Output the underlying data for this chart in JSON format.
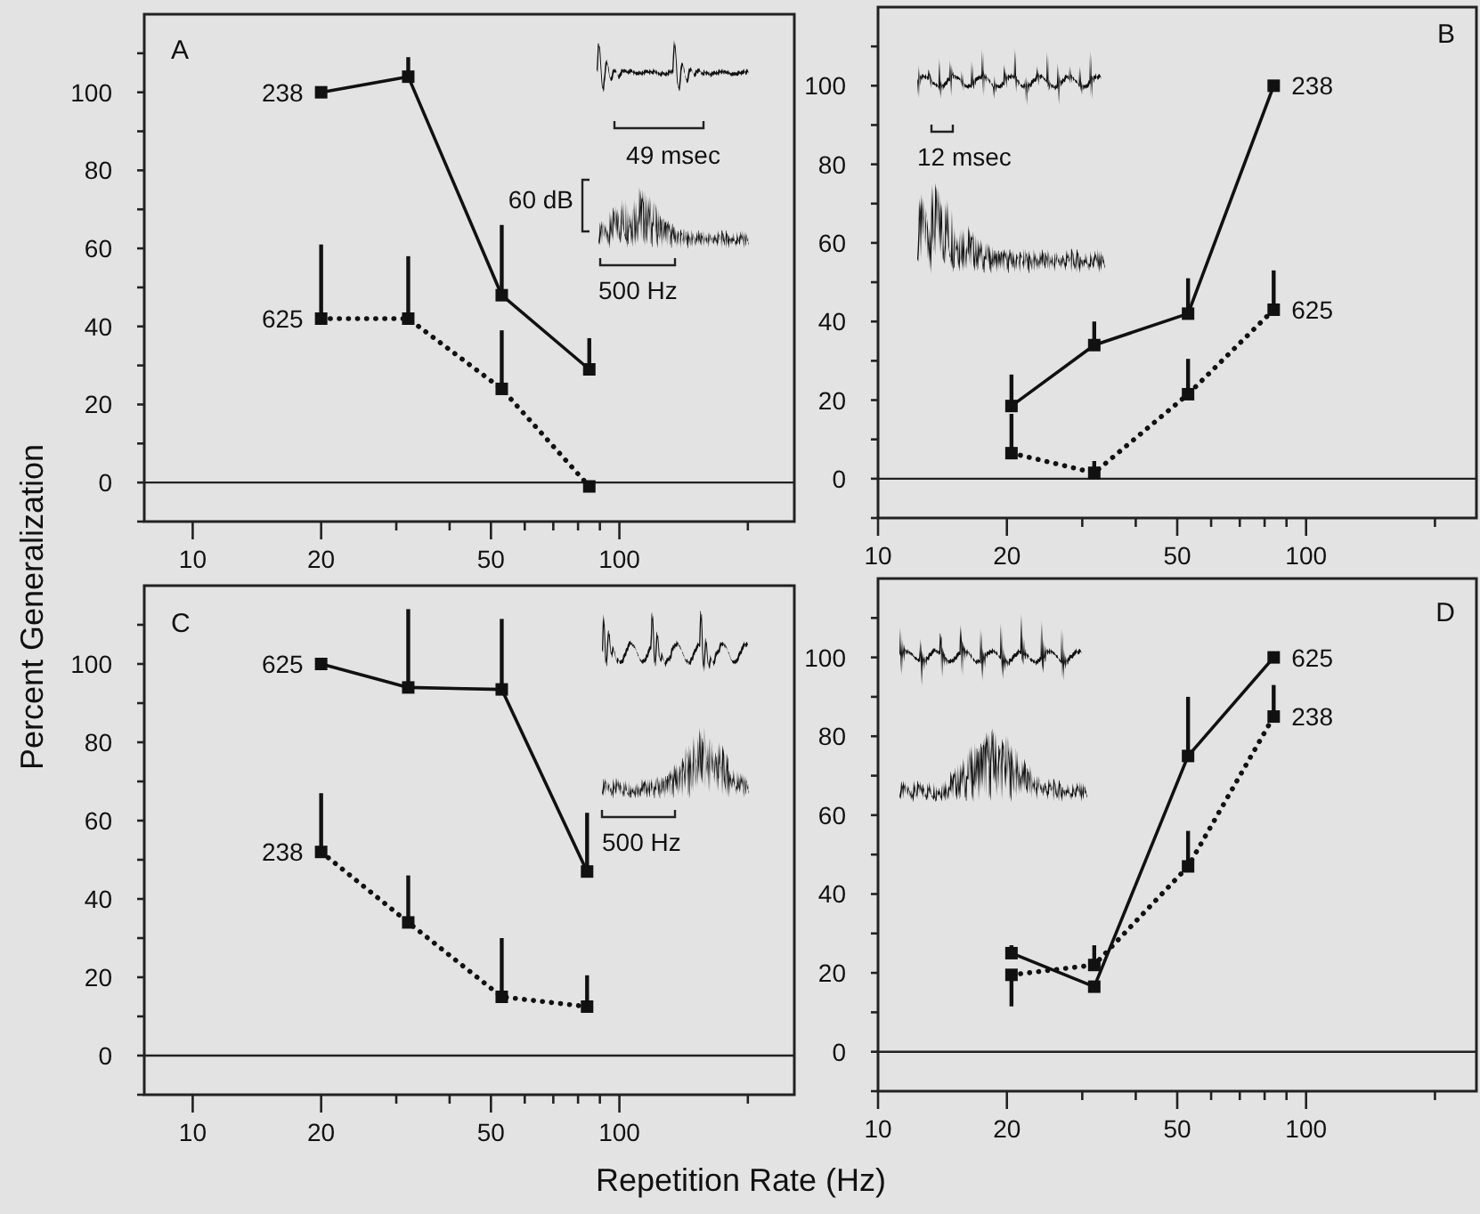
{
  "chart_data": [
    {
      "type": "line",
      "title": "A",
      "log": "x",
      "grid": false,
      "marker": "square",
      "xlim": [
        7.7,
        257
      ],
      "ylim": [
        -10,
        120
      ],
      "xticks": [
        10,
        20,
        {
          "value": 30,
          "label": null
        },
        {
          "value": 40,
          "label": null
        },
        50,
        {
          "value": 60,
          "label": null
        },
        {
          "value": 70,
          "label": null
        },
        {
          "value": 80,
          "label": null
        },
        {
          "value": 90,
          "label": null
        },
        100,
        {
          "value": 200,
          "label": null
        }
      ],
      "yticks": [
        {
          "value": -10,
          "label": null
        },
        0,
        {
          "value": 10,
          "label": null
        },
        20,
        {
          "value": 30,
          "label": null
        },
        40,
        {
          "value": 50,
          "label": null
        },
        60,
        {
          "value": 70,
          "label": null
        },
        80,
        {
          "value": 90,
          "label": null
        },
        100,
        {
          "value": 110,
          "label": null
        }
      ],
      "x": [
        20,
        32,
        53,
        85
      ],
      "series": [
        {
          "name": "238",
          "color": "#111111",
          "line_style": "solid",
          "values": [
            100,
            104,
            48,
            29
          ],
          "errors": [
            null,
            [
              104,
              109
            ],
            [
              48,
              66
            ],
            [
              29,
              37
            ]
          ]
        },
        {
          "name": "625",
          "color": "#111111",
          "line_style": "dotted",
          "values": [
            42,
            42,
            24,
            -1
          ],
          "errors": [
            [
              42,
              61
            ],
            [
              42,
              58
            ],
            [
              24,
              39
            ],
            null
          ]
        }
      ],
      "ref_lines": [
        {
          "axis": "y",
          "value": 0,
          "label": null
        }
      ],
      "annotations": [
        "49 msec",
        "60 dB",
        "500 Hz"
      ]
    },
    {
      "type": "line",
      "title": "B",
      "log": "x",
      "grid": false,
      "marker": "square",
      "xlim": [
        10,
        250
      ],
      "ylim": [
        -10,
        120
      ],
      "xticks": [
        10,
        20,
        {
          "value": 30,
          "label": null
        },
        {
          "value": 40,
          "label": null
        },
        50,
        {
          "value": 60,
          "label": null
        },
        {
          "value": 70,
          "label": null
        },
        {
          "value": 80,
          "label": null
        },
        {
          "value": 90,
          "label": null
        },
        100,
        {
          "value": 200,
          "label": null
        }
      ],
      "yticks": [
        {
          "value": -10,
          "label": null
        },
        0,
        {
          "value": 10,
          "label": null
        },
        20,
        {
          "value": 30,
          "label": null
        },
        40,
        {
          "value": 50,
          "label": null
        },
        60,
        {
          "value": 70,
          "label": null
        },
        80,
        {
          "value": 90,
          "label": null
        },
        100,
        {
          "value": 110,
          "label": null
        }
      ],
      "x": [
        20.5,
        32,
        53,
        84
      ],
      "series": [
        {
          "name": "238",
          "color": "#111111",
          "line_style": "solid",
          "values": [
            18.5,
            34,
            42,
            100
          ],
          "errors": [
            [
              18.5,
              26.5
            ],
            [
              34,
              40
            ],
            [
              42,
              51
            ],
            null
          ]
        },
        {
          "name": "625",
          "color": "#111111",
          "line_style": "dotted",
          "values": [
            6.5,
            1.5,
            21.5,
            43
          ],
          "errors": [
            [
              6.5,
              16.5
            ],
            [
              1.5,
              4.5
            ],
            [
              21.5,
              30.5
            ],
            [
              43,
              53
            ]
          ]
        }
      ],
      "ref_lines": [
        {
          "axis": "y",
          "value": 0,
          "label": null
        }
      ],
      "annotations": [
        "12 msec"
      ]
    },
    {
      "type": "line",
      "title": "C",
      "ylabel": "Percent Generalization",
      "log": "x",
      "grid": false,
      "marker": "square",
      "xlim": [
        7.7,
        257
      ],
      "ylim": [
        -10,
        120
      ],
      "xticks": [
        10,
        20,
        {
          "value": 30,
          "label": null
        },
        {
          "value": 40,
          "label": null
        },
        50,
        {
          "value": 60,
          "label": null
        },
        {
          "value": 70,
          "label": null
        },
        {
          "value": 80,
          "label": null
        },
        {
          "value": 90,
          "label": null
        },
        100,
        {
          "value": 200,
          "label": null
        }
      ],
      "yticks": [
        {
          "value": -10,
          "label": null
        },
        0,
        {
          "value": 10,
          "label": null
        },
        20,
        {
          "value": 30,
          "label": null
        },
        40,
        {
          "value": 50,
          "label": null
        },
        60,
        {
          "value": 70,
          "label": null
        },
        80,
        {
          "value": 90,
          "label": null
        },
        100,
        {
          "value": 110,
          "label": null
        }
      ],
      "x": [
        20,
        32,
        53,
        84
      ],
      "series": [
        {
          "name": "625",
          "color": "#111111",
          "line_style": "solid",
          "values": [
            100,
            94,
            93.5,
            47
          ],
          "errors": [
            null,
            [
              94,
              114
            ],
            [
              93.5,
              111.5
            ],
            [
              47,
              62
            ]
          ]
        },
        {
          "name": "238",
          "color": "#111111",
          "line_style": "dotted",
          "values": [
            52,
            34,
            15,
            12.5
          ],
          "errors": [
            [
              52,
              67
            ],
            [
              34,
              46
            ],
            [
              15,
              30
            ],
            [
              12.5,
              20.5
            ]
          ]
        }
      ],
      "ref_lines": [
        {
          "axis": "y",
          "value": 0,
          "label": null
        }
      ],
      "annotations": [
        "500 Hz"
      ]
    },
    {
      "type": "line",
      "title": "D",
      "xlabel": "Repetition Rate (Hz)",
      "log": "x",
      "grid": false,
      "marker": "square",
      "xlim": [
        10,
        250
      ],
      "ylim": [
        -10,
        120
      ],
      "xticks": [
        10,
        20,
        {
          "value": 30,
          "label": null
        },
        {
          "value": 40,
          "label": null
        },
        50,
        {
          "value": 60,
          "label": null
        },
        {
          "value": 70,
          "label": null
        },
        {
          "value": 80,
          "label": null
        },
        {
          "value": 90,
          "label": null
        },
        100,
        {
          "value": 200,
          "label": null
        }
      ],
      "yticks": [
        {
          "value": -10,
          "label": null
        },
        0,
        {
          "value": 10,
          "label": null
        },
        20,
        {
          "value": 30,
          "label": null
        },
        40,
        {
          "value": 50,
          "label": null
        },
        60,
        {
          "value": 70,
          "label": null
        },
        80,
        {
          "value": 90,
          "label": null
        },
        100,
        {
          "value": 110,
          "label": null
        }
      ],
      "x": [
        20.5,
        32,
        53,
        84
      ],
      "series": [
        {
          "name": "625",
          "color": "#111111",
          "line_style": "solid",
          "values": [
            25,
            16.5,
            75,
            100
          ],
          "errors": [
            [
              25,
              27
            ],
            null,
            [
              75,
              90
            ],
            null
          ]
        },
        {
          "name": "238",
          "color": "#111111",
          "line_style": "dotted",
          "values": [
            19.5,
            22,
            47,
            85
          ],
          "errors": [
            [
              11.5,
              19.5
            ],
            [
              22,
              27
            ],
            [
              47,
              56
            ],
            [
              85,
              93
            ]
          ]
        }
      ],
      "ref_lines": [
        {
          "axis": "y",
          "value": 0,
          "label": null
        }
      ]
    }
  ]
}
